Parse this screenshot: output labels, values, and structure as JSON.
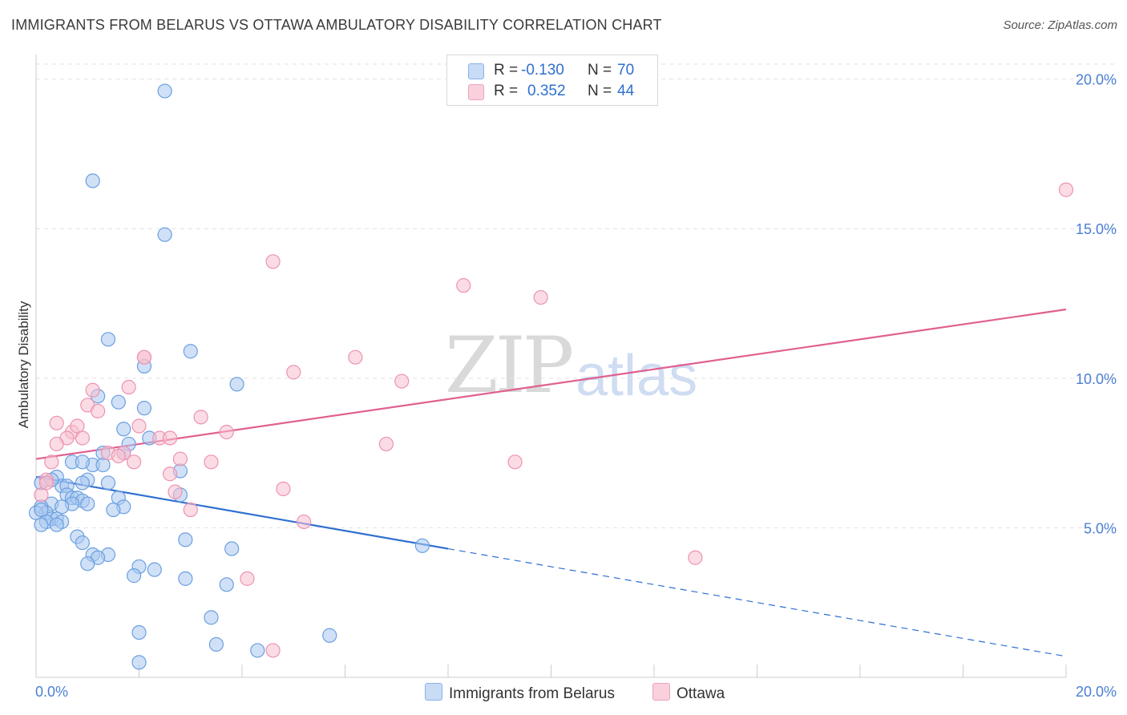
{
  "title": "IMMIGRANTS FROM BELARUS VS OTTAWA AMBULATORY DISABILITY CORRELATION CHART",
  "source": "Source: ZipAtlas.com",
  "watermark": {
    "zip": "ZIP",
    "atlas": "atlas"
  },
  "legend": {
    "rows": [
      {
        "r_label": "R =",
        "r_value": "-0.130",
        "n_label": "N =",
        "n_value": "70"
      },
      {
        "r_label": "R =",
        "r_value": "0.352",
        "n_label": "N =",
        "n_value": "44"
      }
    ]
  },
  "colors": {
    "blue_fill": "#aac8f0",
    "blue_stroke": "#6b9fe0",
    "blue_line": "#2f6fd0",
    "pink_fill": "#f7c0d0",
    "pink_stroke": "#ec93b0",
    "pink_line": "#e06090",
    "grid": "#e2e2e2",
    "tick_text": "#4a7fd4"
  },
  "chart_data": {
    "type": "scatter",
    "title": "IMMIGRANTS FROM BELARUS VS OTTAWA AMBULATORY DISABILITY CORRELATION CHART",
    "ylabel": "Ambulatory Disability",
    "xlabel": "",
    "xlim": [
      0,
      20
    ],
    "ylim": [
      0,
      20.5
    ],
    "x_tick_labels": [
      "0.0%",
      "20.0%"
    ],
    "y_tick_labels": [
      "5.0%",
      "10.0%",
      "15.0%",
      "20.0%"
    ],
    "y_ticks": [
      5,
      10,
      15,
      20
    ],
    "grid": true,
    "legend_position": "top-center",
    "series": [
      {
        "name": "Immigrants from Belarus",
        "color": "#6b9fe0",
        "trend": {
          "x": [
            0,
            8
          ],
          "y": [
            6.7,
            4.3
          ],
          "extended_to": [
            20,
            0.7
          ]
        },
        "points": [
          [
            2.5,
            19.6
          ],
          [
            1.1,
            16.6
          ],
          [
            2.5,
            14.8
          ],
          [
            1.4,
            11.3
          ],
          [
            3.0,
            10.9
          ],
          [
            2.1,
            10.4
          ],
          [
            3.9,
            9.8
          ],
          [
            1.2,
            9.4
          ],
          [
            1.6,
            9.2
          ],
          [
            2.1,
            9.0
          ],
          [
            1.7,
            8.3
          ],
          [
            2.2,
            8.0
          ],
          [
            1.8,
            7.8
          ],
          [
            1.3,
            7.5
          ],
          [
            1.7,
            7.5
          ],
          [
            0.7,
            7.2
          ],
          [
            1.1,
            7.1
          ],
          [
            1.3,
            7.1
          ],
          [
            2.8,
            6.9
          ],
          [
            0.4,
            6.7
          ],
          [
            1.0,
            6.6
          ],
          [
            0.1,
            6.5
          ],
          [
            0.5,
            6.4
          ],
          [
            0.6,
            6.4
          ],
          [
            0.9,
            6.5
          ],
          [
            1.4,
            6.5
          ],
          [
            0.6,
            6.1
          ],
          [
            0.7,
            6.0
          ],
          [
            0.8,
            6.0
          ],
          [
            0.9,
            5.9
          ],
          [
            1.6,
            6.0
          ],
          [
            2.8,
            6.1
          ],
          [
            0.3,
            5.8
          ],
          [
            0.7,
            5.8
          ],
          [
            1.0,
            5.8
          ],
          [
            0.1,
            5.7
          ],
          [
            1.7,
            5.7
          ],
          [
            0.5,
            5.7
          ],
          [
            1.5,
            5.6
          ],
          [
            0.2,
            5.5
          ],
          [
            0.0,
            5.5
          ],
          [
            0.3,
            5.3
          ],
          [
            0.4,
            5.3
          ],
          [
            0.2,
            5.2
          ],
          [
            0.5,
            5.2
          ],
          [
            0.1,
            5.1
          ],
          [
            0.4,
            5.1
          ],
          [
            0.8,
            4.7
          ],
          [
            0.9,
            4.5
          ],
          [
            2.9,
            4.6
          ],
          [
            7.5,
            4.4
          ],
          [
            3.8,
            4.3
          ],
          [
            1.1,
            4.1
          ],
          [
            1.4,
            4.1
          ],
          [
            1.2,
            4.0
          ],
          [
            1.0,
            3.8
          ],
          [
            2.0,
            3.7
          ],
          [
            2.3,
            3.6
          ],
          [
            1.9,
            3.4
          ],
          [
            2.9,
            3.3
          ],
          [
            3.7,
            3.1
          ],
          [
            3.4,
            2.0
          ],
          [
            2.0,
            1.5
          ],
          [
            5.7,
            1.4
          ],
          [
            3.5,
            1.1
          ],
          [
            4.3,
            0.9
          ],
          [
            2.0,
            0.5
          ],
          [
            0.1,
            5.6
          ],
          [
            0.3,
            6.6
          ],
          [
            0.9,
            7.2
          ]
        ]
      },
      {
        "name": "Ottawa",
        "color": "#ec93b0",
        "trend": {
          "x": [
            0,
            20
          ],
          "y": [
            7.3,
            12.3
          ]
        },
        "points": [
          [
            20.0,
            16.3
          ],
          [
            4.6,
            13.9
          ],
          [
            8.3,
            13.1
          ],
          [
            9.8,
            12.7
          ],
          [
            2.1,
            10.7
          ],
          [
            2.1,
            10.7
          ],
          [
            6.2,
            10.7
          ],
          [
            5.0,
            10.2
          ],
          [
            7.1,
            9.9
          ],
          [
            1.1,
            9.6
          ],
          [
            1.8,
            9.7
          ],
          [
            1.0,
            9.1
          ],
          [
            1.2,
            8.9
          ],
          [
            3.2,
            8.7
          ],
          [
            0.4,
            8.5
          ],
          [
            0.7,
            8.2
          ],
          [
            0.8,
            8.4
          ],
          [
            2.0,
            8.4
          ],
          [
            3.7,
            8.2
          ],
          [
            0.6,
            8.0
          ],
          [
            0.9,
            8.0
          ],
          [
            2.4,
            8.0
          ],
          [
            2.6,
            8.0
          ],
          [
            0.4,
            7.8
          ],
          [
            6.8,
            7.8
          ],
          [
            1.4,
            7.5
          ],
          [
            1.7,
            7.5
          ],
          [
            1.6,
            7.4
          ],
          [
            2.8,
            7.3
          ],
          [
            0.3,
            7.2
          ],
          [
            1.9,
            7.2
          ],
          [
            3.4,
            7.2
          ],
          [
            9.3,
            7.2
          ],
          [
            2.6,
            6.8
          ],
          [
            0.2,
            6.6
          ],
          [
            0.2,
            6.5
          ],
          [
            4.8,
            6.3
          ],
          [
            2.7,
            6.2
          ],
          [
            0.1,
            6.1
          ],
          [
            3.0,
            5.6
          ],
          [
            5.2,
            5.2
          ],
          [
            12.8,
            4.0
          ],
          [
            4.1,
            3.3
          ],
          [
            4.6,
            0.9
          ]
        ]
      }
    ]
  },
  "bottom_legend": [
    "Immigrants from Belarus",
    "Ottawa"
  ]
}
